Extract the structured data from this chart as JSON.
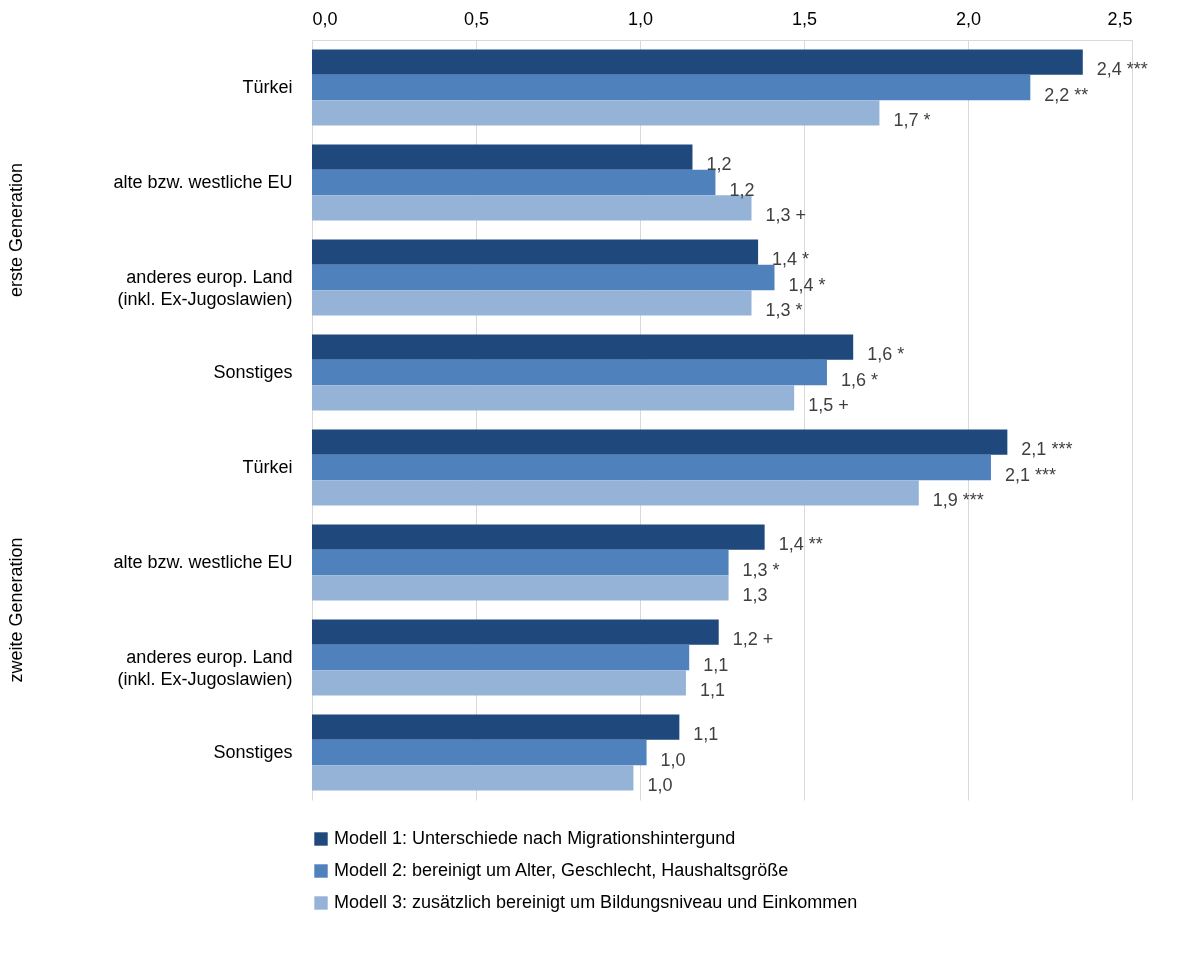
{
  "chart_data": {
    "type": "bar",
    "orientation": "horizontal",
    "categories": [
      "Türkei",
      "alte bzw. westliche EU",
      "anderes europ. Land\n(inkl. Ex-Jugoslawien)",
      "Sonstiges",
      "Türkei",
      "alte bzw. westliche EU",
      "anderes europ. Land\n(inkl. Ex-Jugoslawien)",
      "Sonstiges"
    ],
    "series": [
      {
        "name": "Modell 1: Unterschiede nach Migrationshintergund",
        "color": "#1f497d",
        "values": [
          2.35,
          1.16,
          1.36,
          1.65,
          2.12,
          1.38,
          1.24,
          1.12
        ],
        "value_labels": [
          "2,4 ***",
          "1,2",
          "1,4 *",
          "1,6 *",
          "2,1 ***",
          "1,4 **",
          "1,2 +",
          "1,1"
        ]
      },
      {
        "name": "Modell 2: bereinigt um Alter, Geschlecht, Haushaltsgröße",
        "color": "#4f81bd",
        "values": [
          2.19,
          1.23,
          1.41,
          1.57,
          2.07,
          1.27,
          1.15,
          1.02
        ],
        "value_labels": [
          "2,2 **",
          "1,2",
          "1,4 *",
          "1,6 *",
          "2,1 ***",
          "1,3 *",
          "1,1",
          "1,0"
        ]
      },
      {
        "name": "Modell 3: zusätzlich bereinigt um Bildungsniveau und Einkommen",
        "color": "#95b3d7",
        "values": [
          1.73,
          1.34,
          1.34,
          1.47,
          1.85,
          1.27,
          1.14,
          0.98
        ],
        "value_labels": [
          "1,7 *",
          "1,3 +",
          "1,3 *",
          "1,5 +",
          "1,9 ***",
          "1,3",
          "1,1",
          "1,0"
        ]
      }
    ],
    "xlim": [
      0,
      2.5
    ],
    "xticks": [
      {
        "value": 0,
        "label": "0,0"
      },
      {
        "value": 0.5,
        "label": "0,5"
      },
      {
        "value": 1,
        "label": "1,0"
      },
      {
        "value": 1.5,
        "label": "1,5"
      },
      {
        "value": 2,
        "label": "2,0"
      },
      {
        "value": 2.5,
        "label": "2,5"
      }
    ],
    "annotations": [
      "erste Generation",
      "zweite Generation"
    ],
    "grid": "x",
    "legend": "bottom"
  }
}
